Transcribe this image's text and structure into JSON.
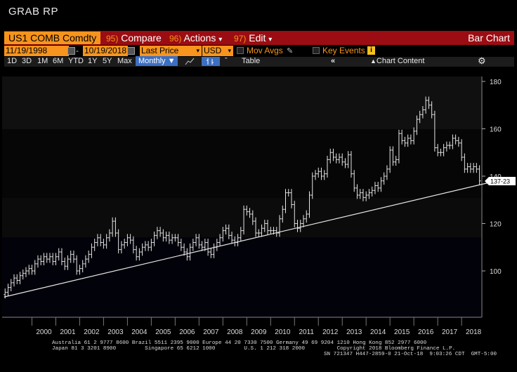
{
  "window_title": "GRAB  RP",
  "command_bar": {
    "ticker": "US1 COMB Comdty",
    "compare_num": "95)",
    "compare_label": "Compare",
    "actions_num": "96)",
    "actions_label": "Actions",
    "edit_num": "97)",
    "edit_label": "Edit",
    "dropdown_glyph": "▾",
    "right_label": "Bar Chart"
  },
  "params": {
    "start_date": "11/19/1998",
    "dash": "-",
    "end_date": "10/19/2018",
    "field": "Last Price",
    "currency": "USD",
    "mov_avgs": "Mov Avgs",
    "key_events": "Key Events"
  },
  "toolbar": {
    "periods": [
      "1D",
      "3D",
      "1M",
      "6M",
      "YTD",
      "1Y",
      "5Y",
      "Max"
    ],
    "frequency": "Monthly ▼",
    "table": "Table",
    "chart_content": "Chart Content"
  },
  "chart_data": {
    "type": "bar",
    "bar_style": "OHLC",
    "frequency": "monthly",
    "x_ticks": [
      "2000",
      "2001",
      "2002",
      "2003",
      "2004",
      "2005",
      "2006",
      "2007",
      "2008",
      "2009",
      "2010",
      "2011",
      "2012",
      "2013",
      "2014",
      "2015",
      "2016",
      "2017",
      "2018"
    ],
    "y_ticks": [
      100,
      120,
      140,
      160,
      180
    ],
    "ylim": [
      87,
      185
    ],
    "last_value_label": "137-23",
    "trendline": {
      "x": [
        "1998-11",
        "2018-10"
      ],
      "y": [
        89,
        137
      ]
    },
    "monthly_close": [
      [
        1998.875,
        91
      ],
      [
        1999.0,
        93
      ],
      [
        1999.125,
        95
      ],
      [
        1999.25,
        97
      ],
      [
        1999.375,
        96
      ],
      [
        1999.5,
        98
      ],
      [
        1999.625,
        99
      ],
      [
        1999.75,
        100
      ],
      [
        1999.875,
        101
      ],
      [
        2000.0,
        100
      ],
      [
        2000.125,
        103
      ],
      [
        2000.25,
        105
      ],
      [
        2000.375,
        104
      ],
      [
        2000.5,
        106
      ],
      [
        2000.625,
        105
      ],
      [
        2000.75,
        106
      ],
      [
        2000.875,
        104
      ],
      [
        2001.0,
        106
      ],
      [
        2001.125,
        108
      ],
      [
        2001.25,
        104
      ],
      [
        2001.375,
        102
      ],
      [
        2001.5,
        105
      ],
      [
        2001.625,
        107
      ],
      [
        2001.75,
        105
      ],
      [
        2001.875,
        100
      ],
      [
        2002.0,
        101
      ],
      [
        2002.125,
        103
      ],
      [
        2002.25,
        105
      ],
      [
        2002.375,
        107
      ],
      [
        2002.5,
        110
      ],
      [
        2002.625,
        112
      ],
      [
        2002.75,
        114
      ],
      [
        2002.875,
        112
      ],
      [
        2003.0,
        111
      ],
      [
        2003.125,
        114
      ],
      [
        2003.25,
        116
      ],
      [
        2003.375,
        121
      ],
      [
        2003.5,
        116
      ],
      [
        2003.625,
        109
      ],
      [
        2003.75,
        111
      ],
      [
        2003.875,
        112
      ],
      [
        2004.0,
        114
      ],
      [
        2004.125,
        113
      ],
      [
        2004.25,
        109
      ],
      [
        2004.375,
        106
      ],
      [
        2004.5,
        108
      ],
      [
        2004.625,
        110
      ],
      [
        2004.75,
        111
      ],
      [
        2004.875,
        110
      ],
      [
        2005.0,
        112
      ],
      [
        2005.125,
        115
      ],
      [
        2005.25,
        117
      ],
      [
        2005.375,
        116
      ],
      [
        2005.5,
        114
      ],
      [
        2005.625,
        115
      ],
      [
        2005.75,
        113
      ],
      [
        2005.875,
        114
      ],
      [
        2006.0,
        114
      ],
      [
        2006.125,
        112
      ],
      [
        2006.25,
        110
      ],
      [
        2006.375,
        108
      ],
      [
        2006.5,
        106
      ],
      [
        2006.625,
        110
      ],
      [
        2006.75,
        112
      ],
      [
        2006.875,
        114
      ],
      [
        2007.0,
        111
      ],
      [
        2007.125,
        110
      ],
      [
        2007.25,
        112
      ],
      [
        2007.375,
        108
      ],
      [
        2007.5,
        107
      ],
      [
        2007.625,
        110
      ],
      [
        2007.75,
        112
      ],
      [
        2007.875,
        114
      ],
      [
        2008.0,
        117
      ],
      [
        2008.125,
        118
      ],
      [
        2008.25,
        115
      ],
      [
        2008.375,
        113
      ],
      [
        2008.5,
        112
      ],
      [
        2008.625,
        114
      ],
      [
        2008.75,
        117
      ],
      [
        2008.875,
        126
      ],
      [
        2009.0,
        125
      ],
      [
        2009.125,
        124
      ],
      [
        2009.25,
        121
      ],
      [
        2009.375,
        116
      ],
      [
        2009.5,
        116
      ],
      [
        2009.625,
        118
      ],
      [
        2009.75,
        120
      ],
      [
        2009.875,
        117
      ],
      [
        2010.0,
        117
      ],
      [
        2010.125,
        117
      ],
      [
        2010.25,
        116
      ],
      [
        2010.375,
        122
      ],
      [
        2010.5,
        126
      ],
      [
        2010.625,
        133
      ],
      [
        2010.75,
        133
      ],
      [
        2010.875,
        128
      ],
      [
        2011.0,
        120
      ],
      [
        2011.125,
        118
      ],
      [
        2011.25,
        120
      ],
      [
        2011.375,
        122
      ],
      [
        2011.5,
        124
      ],
      [
        2011.625,
        132
      ],
      [
        2011.75,
        140
      ],
      [
        2011.875,
        141
      ],
      [
        2012.0,
        142
      ],
      [
        2012.125,
        140
      ],
      [
        2012.25,
        141
      ],
      [
        2012.375,
        147
      ],
      [
        2012.5,
        150
      ],
      [
        2012.625,
        148
      ],
      [
        2012.75,
        147
      ],
      [
        2012.875,
        148
      ],
      [
        2013.0,
        146
      ],
      [
        2013.125,
        145
      ],
      [
        2013.25,
        149
      ],
      [
        2013.375,
        141
      ],
      [
        2013.5,
        135
      ],
      [
        2013.625,
        132
      ],
      [
        2013.75,
        133
      ],
      [
        2013.875,
        131
      ],
      [
        2014.0,
        132
      ],
      [
        2014.125,
        133
      ],
      [
        2014.25,
        134
      ],
      [
        2014.375,
        136
      ],
      [
        2014.5,
        135
      ],
      [
        2014.625,
        138
      ],
      [
        2014.75,
        140
      ],
      [
        2014.875,
        143
      ],
      [
        2015.0,
        151
      ],
      [
        2015.125,
        146
      ],
      [
        2015.25,
        147
      ],
      [
        2015.375,
        158
      ],
      [
        2015.5,
        155
      ],
      [
        2015.625,
        154
      ],
      [
        2015.75,
        156
      ],
      [
        2015.875,
        155
      ],
      [
        2016.0,
        159
      ],
      [
        2016.125,
        164
      ],
      [
        2016.25,
        166
      ],
      [
        2016.375,
        168
      ],
      [
        2016.5,
        172
      ],
      [
        2016.625,
        170
      ],
      [
        2016.75,
        166
      ],
      [
        2016.875,
        152
      ],
      [
        2017.0,
        150
      ],
      [
        2017.125,
        150
      ],
      [
        2017.25,
        152
      ],
      [
        2017.375,
        153
      ],
      [
        2017.5,
        153
      ],
      [
        2017.625,
        156
      ],
      [
        2017.75,
        155
      ],
      [
        2017.875,
        154
      ],
      [
        2018.0,
        148
      ],
      [
        2018.125,
        143
      ],
      [
        2018.25,
        144
      ],
      [
        2018.375,
        143
      ],
      [
        2018.5,
        144
      ],
      [
        2018.625,
        143
      ],
      [
        2018.75,
        138
      ]
    ]
  },
  "footer": {
    "line1": "Australia 61 2 9777 8600 Brazil 5511 2395 9000 Europe 44 20 7330 7500 Germany 49 69 9204 1210 Hong Kong 852 2977 6000",
    "line2": "Japan 81 3 3201 8900         Singapore 65 6212 1000         U.S. 1 212 318 2000          Copyright 2018 Bloomberg Finance L.P.",
    "line3": "SN 721347 H447-2859-0 21-Oct-18  9:03:26 CDT  GMT-5:00"
  },
  "colors": {
    "brand_orange": "#f7941d",
    "command_bar_red": "#9b0d12",
    "selected_blue": "#3b6fc4",
    "bars": "#e6e6e6"
  }
}
